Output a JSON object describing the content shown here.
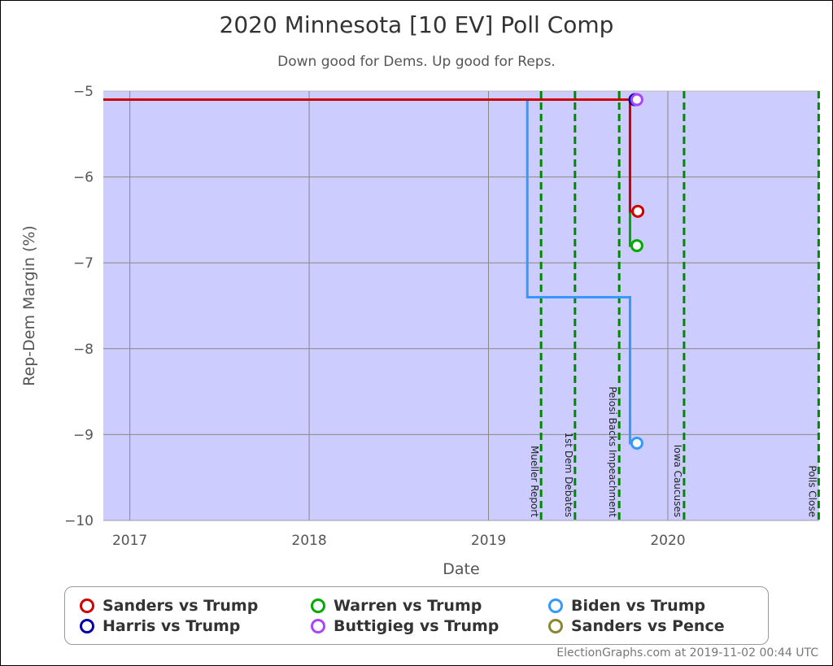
{
  "chart_data": {
    "type": "line",
    "title": "2020 Minnesota [10 EV] Poll Comp",
    "subtitle": "Down good for Dems. Up good for Reps.",
    "xlabel": "Date",
    "ylabel": "Rep-Dem Margin (%)",
    "xlim": [
      "2016-11-08",
      "2020-11-04"
    ],
    "ylim": [
      -10,
      -5
    ],
    "x_ticks": [
      {
        "date": "2017-01-01",
        "label": "2017"
      },
      {
        "date": "2018-01-01",
        "label": "2018"
      },
      {
        "date": "2019-01-01",
        "label": "2019"
      },
      {
        "date": "2020-01-01",
        "label": "2020"
      }
    ],
    "y_ticks": [
      -5,
      -6,
      -7,
      -8,
      -9,
      -10
    ],
    "y_tick_labels": [
      "−5",
      "−6",
      "−7",
      "−8",
      "−9",
      "−10"
    ],
    "grid": true,
    "background_color": "#ccccff",
    "events": [
      {
        "date": "2019-04-18",
        "label": "Mueller Report"
      },
      {
        "date": "2019-06-26",
        "label": "1st Dem Debates"
      },
      {
        "date": "2019-09-24",
        "label": "Pelosi Backs Impeachment"
      },
      {
        "date": "2020-02-03",
        "label": "Iowa Caucuses"
      },
      {
        "date": "2020-11-03",
        "label": "Polls Close"
      }
    ],
    "event_color": "#008800",
    "legend_placement": "bottom",
    "series": [
      {
        "name": "Harris vs Trump",
        "color": "#0000aa",
        "steps": [
          [
            "2016-11-08",
            -5.1
          ]
        ],
        "point": [
          "2019-10-26",
          -5.1
        ]
      },
      {
        "name": "Buttigieg vs Trump",
        "color": "#aa44ff",
        "steps": [
          [
            "2016-11-08",
            -5.1
          ]
        ],
        "point": [
          "2019-10-30",
          -5.1
        ]
      },
      {
        "name": "Sanders vs Pence",
        "color": "#888833",
        "steps": [
          [
            "2016-11-08",
            -5.1
          ]
        ],
        "point": null
      },
      {
        "name": "Warren vs Trump",
        "color": "#00aa00",
        "steps": [
          [
            "2016-11-08",
            -5.1
          ],
          [
            "2019-10-16",
            -6.8
          ]
        ],
        "point": [
          "2019-10-30",
          -6.8
        ]
      },
      {
        "name": "Biden vs Trump",
        "color": "#3399ff",
        "steps": [
          [
            "2016-11-08",
            -5.1
          ],
          [
            "2019-03-21",
            -7.4
          ],
          [
            "2019-10-16",
            -9.1
          ]
        ],
        "point": [
          "2019-10-30",
          -9.1
        ]
      },
      {
        "name": "Sanders vs Trump",
        "color": "#cc0000",
        "steps": [
          [
            "2016-11-08",
            -5.1
          ],
          [
            "2019-10-16",
            -6.4
          ]
        ],
        "point": [
          "2019-11-01",
          -6.4
        ]
      }
    ],
    "legend_order": [
      "Sanders vs Trump",
      "Warren vs Trump",
      "Biden vs Trump",
      "Harris vs Trump",
      "Buttigieg vs Trump",
      "Sanders vs Pence"
    ]
  },
  "credit": "ElectionGraphs.com at 2019-11-02 00:44 UTC"
}
